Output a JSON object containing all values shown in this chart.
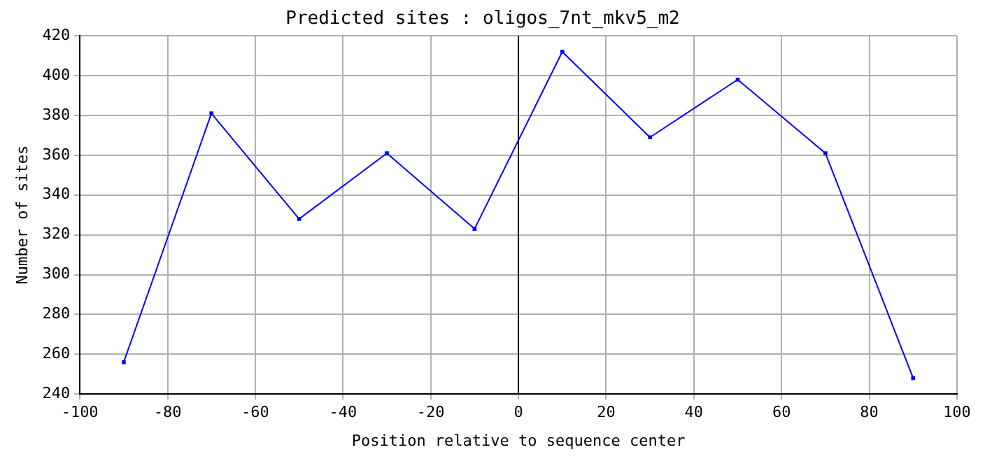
{
  "chart_data": {
    "type": "line",
    "title": "Predicted sites : oligos_7nt_mkv5_m2",
    "xlabel": "Position relative to sequence center",
    "ylabel": "Number of sites",
    "x": [
      -90,
      -70,
      -50,
      -30,
      -10,
      10,
      30,
      50,
      70,
      90
    ],
    "series": [
      {
        "color": "#0000ff",
        "values": [
          256,
          381,
          328,
          361,
          323,
          412,
          369,
          398,
          361,
          248
        ]
      }
    ],
    "xlim": [
      -100,
      100
    ],
    "xticks": [
      -100,
      -80,
      -60,
      -40,
      -20,
      0,
      20,
      40,
      60,
      80,
      100
    ],
    "ylim": [
      240,
      420
    ],
    "yticks": [
      240,
      260,
      280,
      300,
      320,
      340,
      360,
      380,
      400,
      420
    ],
    "ref_lines": [
      {
        "axis": "x",
        "value": 0,
        "color": "#000000"
      }
    ],
    "grid": true,
    "legend": false,
    "marker": "square",
    "line_style": "solid"
  }
}
